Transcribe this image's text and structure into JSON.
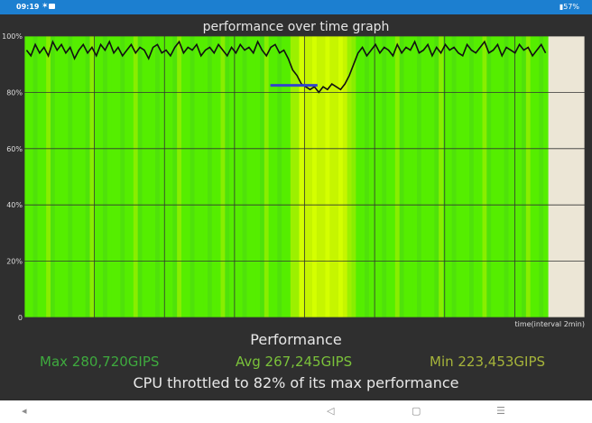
{
  "status_bar": {
    "time": "09:19",
    "notification_icons": [
      "cat-notification-icon",
      "app-notification-icon"
    ],
    "battery_icon": "battery-icon",
    "battery": "57%",
    "background": "#1c7fd0"
  },
  "graph": {
    "title": "performance over time graph",
    "x_label": "time(interval 2min)",
    "background": "#ece6d6",
    "grid_color": "#333333",
    "line_color": "#111111",
    "marker_color": "#3344cc"
  },
  "chart_data": {
    "type": "line",
    "title": "performance over time graph",
    "xlabel": "time(interval 2min)",
    "ylabel": "",
    "y_ticks": [
      "0",
      "20%",
      "40%",
      "60%",
      "80%",
      "100%"
    ],
    "ylim": [
      0,
      100
    ],
    "grid": true,
    "band_colors": [
      "#55ee00",
      "#88ee00",
      "#ccff00",
      "#66dd11"
    ],
    "series": [
      {
        "values": [
          95,
          93,
          97,
          94,
          96,
          93,
          98,
          95,
          97,
          94,
          96,
          92,
          95,
          97,
          94,
          96,
          93,
          97,
          95,
          98,
          94,
          96,
          93,
          95,
          97,
          94,
          96,
          95,
          92,
          96,
          97,
          94,
          95,
          93,
          96,
          98,
          94,
          96,
          95,
          97,
          93,
          95,
          96,
          94,
          97,
          95,
          93,
          96,
          94,
          97,
          95,
          96,
          94,
          98,
          95,
          93,
          96,
          97,
          94,
          95,
          92,
          88,
          86,
          83,
          82,
          81,
          82,
          80,
          82,
          81,
          83,
          82,
          81,
          83,
          86,
          90,
          94,
          96,
          93,
          95,
          97,
          94,
          96,
          95,
          93,
          97,
          94,
          96,
          95,
          98,
          94,
          95,
          97,
          93,
          96,
          94,
          97,
          95,
          96,
          94,
          93,
          97,
          95,
          94,
          96,
          98,
          94,
          95,
          97,
          93,
          96,
          95,
          94,
          97,
          95,
          96,
          93,
          95,
          97,
          94
        ]
      }
    ],
    "throttle_marker": {
      "y": 82.5,
      "x_start": 0.47,
      "x_end": 0.56
    }
  },
  "performance": {
    "title": "Performance",
    "max": "Max 280,720GIPS",
    "avg": "Avg 267,245GIPS",
    "min": "Min 223,453GIPS",
    "throttle_message": "CPU throttled to 82% of its max performance"
  },
  "nav_bar": {
    "back_small": "◂",
    "back": "◁",
    "home": "▢",
    "recents": "☰"
  }
}
